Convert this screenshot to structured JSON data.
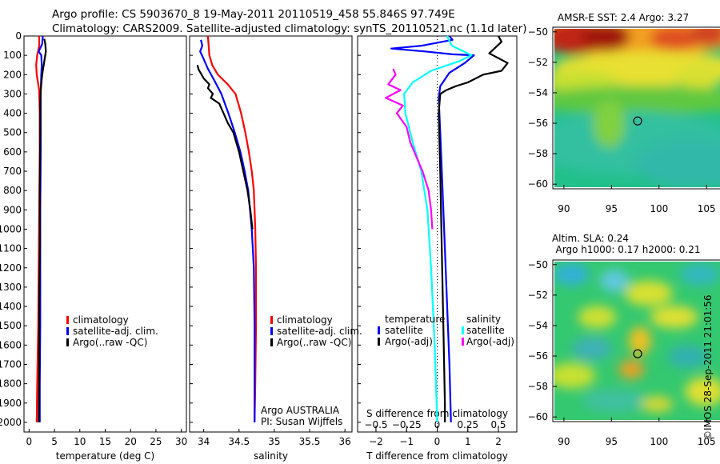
{
  "header": {
    "title_line1": "Argo profile: CS 5903670_8 19-May-2011 20110519_458 55.846S 97.749E",
    "title_line2": "Climatology: CARS2009. Satellite-adjusted climatology: synTS_20110521.nc (1.1d later)"
  },
  "colors": {
    "climatology": "#ff0000",
    "satellite": "#0000ff",
    "argo": "#000000",
    "satellite_salinity": "#00ffff",
    "argo_salinity": "#ff00ff"
  },
  "chart_data": [
    {
      "id": "temperature",
      "type": "line",
      "xlabel": "temperature (deg C)",
      "xlim": [
        -1,
        31
      ],
      "xticks": [
        0,
        5,
        10,
        15,
        20,
        25,
        30
      ],
      "xtick_labels": [
        "0",
        "5",
        "10",
        "15",
        "20",
        "25",
        "30"
      ],
      "ylim": [
        2050,
        0
      ],
      "yticks": [
        0,
        100,
        200,
        300,
        400,
        500,
        600,
        700,
        800,
        900,
        1000,
        1100,
        1200,
        1300,
        1400,
        1500,
        1600,
        1700,
        1800,
        1900,
        2000
      ],
      "ytick_labels": [
        "0",
        "100",
        "200",
        "300",
        "400",
        "500",
        "600",
        "700",
        "800",
        "900",
        "1000",
        "1100",
        "1200",
        "1300",
        "1400",
        "1500",
        "1600",
        "1700",
        "1800",
        "1900",
        "2000"
      ],
      "legend": {
        "placement": "lower-right",
        "entries": [
          {
            "label": "climatology",
            "color": "#ff0000"
          },
          {
            "label": "satellite-adj. clim.",
            "color": "#0000ff"
          },
          {
            "label": "Argo(..raw -QC)",
            "color": "#000000"
          }
        ]
      },
      "series": [
        {
          "name": "climatology",
          "color": "#ff0000",
          "points": [
            [
              2.0,
              0
            ],
            [
              2.0,
              50
            ],
            [
              1.6,
              100
            ],
            [
              1.4,
              150
            ],
            [
              1.5,
              200
            ],
            [
              2.0,
              280
            ],
            [
              2.1,
              400
            ],
            [
              2.1,
              600
            ],
            [
              2.0,
              900
            ],
            [
              1.9,
              1200
            ],
            [
              1.8,
              1500
            ],
            [
              1.6,
              1800
            ],
            [
              1.5,
              2000
            ]
          ]
        },
        {
          "name": "satellite-adj. clim.",
          "color": "#0000ff",
          "points": [
            [
              2.7,
              0
            ],
            [
              2.6,
              40
            ],
            [
              1.9,
              80
            ],
            [
              2.4,
              100
            ],
            [
              2.5,
              150
            ],
            [
              2.4,
              200
            ],
            [
              2.3,
              300
            ],
            [
              2.3,
              400
            ],
            [
              2.3,
              600
            ],
            [
              2.2,
              900
            ],
            [
              2.2,
              1200
            ],
            [
              2.2,
              1500
            ],
            [
              2.1,
              1800
            ],
            [
              2.1,
              2000
            ]
          ]
        },
        {
          "name": "Argo(..raw -QC)",
          "color": "#000000",
          "points": [
            [
              3.0,
              15
            ],
            [
              3.2,
              40
            ],
            [
              3.3,
              80
            ],
            [
              3.0,
              130
            ],
            [
              2.7,
              180
            ],
            [
              2.5,
              220
            ],
            [
              2.3,
              280
            ],
            [
              2.2,
              350
            ],
            [
              2.2,
              500
            ],
            [
              2.1,
              800
            ],
            [
              2.1,
              1100
            ],
            [
              2.0,
              1400
            ],
            [
              2.0,
              1700
            ],
            [
              1.9,
              2000
            ]
          ]
        }
      ]
    },
    {
      "id": "salinity",
      "type": "line",
      "xlabel": "salinity",
      "xlim": [
        33.8,
        36.1
      ],
      "xticks": [
        34,
        34.5,
        35,
        35.5,
        36
      ],
      "xtick_labels": [
        "34",
        "34.5",
        "35",
        "35.5",
        "36"
      ],
      "ylim": [
        2050,
        0
      ],
      "legend": {
        "placement": "lower-right",
        "entries": [
          {
            "label": "climatology",
            "color": "#ff0000"
          },
          {
            "label": "satellite-adj. clim.",
            "color": "#0000ff"
          },
          {
            "label": "Argo(..raw -QC)",
            "color": "#000000"
          }
        ]
      },
      "annotations": [
        "Argo AUSTRALIA",
        "PI: Susan Wijffels"
      ],
      "series": [
        {
          "name": "climatology",
          "color": "#ff0000",
          "points": [
            [
              34.06,
              0
            ],
            [
              34.08,
              100
            ],
            [
              34.12,
              150
            ],
            [
              34.2,
              200
            ],
            [
              34.34,
              250
            ],
            [
              34.45,
              300
            ],
            [
              34.53,
              400
            ],
            [
              34.59,
              500
            ],
            [
              34.64,
              600
            ],
            [
              34.68,
              700
            ],
            [
              34.71,
              800
            ],
            [
              34.73,
              1000
            ],
            [
              34.74,
              1200
            ],
            [
              34.74,
              1500
            ],
            [
              34.73,
              1800
            ],
            [
              34.72,
              2000
            ]
          ]
        },
        {
          "name": "satellite-adj. clim.",
          "color": "#0000ff",
          "points": [
            [
              33.96,
              20
            ],
            [
              33.98,
              50
            ],
            [
              33.95,
              80
            ],
            [
              34.0,
              120
            ],
            [
              34.06,
              170
            ],
            [
              34.15,
              230
            ],
            [
              34.25,
              300
            ],
            [
              34.35,
              400
            ],
            [
              34.44,
              500
            ],
            [
              34.52,
              600
            ],
            [
              34.58,
              700
            ],
            [
              34.63,
              800
            ],
            [
              34.68,
              1000
            ],
            [
              34.71,
              1200
            ],
            [
              34.72,
              1500
            ],
            [
              34.72,
              1800
            ],
            [
              34.72,
              2000
            ]
          ]
        },
        {
          "name": "Argo(..raw -QC)",
          "color": "#000000",
          "points": [
            [
              33.91,
              150
            ],
            [
              33.93,
              175
            ],
            [
              33.97,
              200
            ],
            [
              34.0,
              220
            ],
            [
              34.08,
              250
            ],
            [
              34.06,
              270
            ],
            [
              34.13,
              300
            ],
            [
              34.1,
              320
            ],
            [
              34.22,
              350
            ],
            [
              34.28,
              400
            ],
            [
              34.34,
              450
            ],
            [
              34.42,
              500
            ],
            [
              34.5,
              600
            ],
            [
              34.56,
              700
            ],
            [
              34.62,
              800
            ],
            [
              34.66,
              900
            ],
            [
              34.69,
              1000
            ]
          ]
        }
      ]
    },
    {
      "id": "difference",
      "type": "line",
      "xlabel": "T difference from climatology",
      "x2label": "S difference from climatology",
      "xlim": [
        -2.6,
        2.6
      ],
      "xticks": [
        -2,
        -1,
        0,
        1,
        2
      ],
      "xtick_labels": [
        "−2",
        "−1",
        "0",
        "1",
        "2"
      ],
      "x2ticks": [
        -0.5,
        -0.25,
        0,
        0.25,
        0.5
      ],
      "x2tick_labels": [
        "−0.5",
        "−0.25",
        "0",
        "0.25",
        "0.5"
      ],
      "ylim": [
        2050,
        0
      ],
      "legend": {
        "placement": "lower-center",
        "temperature_title": "temperature",
        "salinity_title": "salinity",
        "temperature_entries": [
          {
            "label": "satellite",
            "color": "#0000ff"
          },
          {
            "label": "Argo(-adj)",
            "color": "#000000"
          }
        ],
        "salinity_entries": [
          {
            "label": "satellite",
            "color": "#00ffff"
          },
          {
            "label": "Argo(-adj)",
            "color": "#ff00ff"
          }
        ]
      },
      "series": [
        {
          "name": "satellite",
          "quantity": "T",
          "color": "#0000ff",
          "points": [
            [
              0.4,
              0
            ],
            [
              0.5,
              20
            ],
            [
              -0.5,
              50
            ],
            [
              -1.5,
              65
            ],
            [
              -0.4,
              80
            ],
            [
              0.5,
              95
            ],
            [
              1.2,
              100
            ],
            [
              0.9,
              140
            ],
            [
              0.4,
              190
            ],
            [
              0.1,
              260
            ],
            [
              0.05,
              320
            ],
            [
              0.1,
              500
            ],
            [
              0.2,
              900
            ],
            [
              0.3,
              1300
            ],
            [
              0.4,
              1700
            ],
            [
              0.45,
              2000
            ]
          ]
        },
        {
          "name": "Argo(-adj)",
          "quantity": "T",
          "color": "#000000",
          "points": [
            [
              2.0,
              0
            ],
            [
              2.1,
              30
            ],
            [
              1.7,
              90
            ],
            [
              2.3,
              140
            ],
            [
              2.1,
              180
            ],
            [
              1.5,
              200
            ],
            [
              1.0,
              240
            ],
            [
              0.6,
              260
            ],
            [
              0.3,
              280
            ],
            [
              0.1,
              300
            ],
            [
              0.05,
              400
            ],
            [
              0.1,
              700
            ],
            [
              0.15,
              1100
            ],
            [
              0.2,
              1500
            ],
            [
              0.25,
              1900
            ],
            [
              0.25,
              2000
            ]
          ]
        },
        {
          "name": "satellite",
          "quantity": "S",
          "color": "#00ffff",
          "points": [
            [
              0.08,
              0
            ],
            [
              0.12,
              50
            ],
            [
              0.28,
              100
            ],
            [
              0.18,
              130
            ],
            [
              -0.05,
              180
            ],
            [
              -0.2,
              240
            ],
            [
              -0.27,
              300
            ],
            [
              -0.26,
              400
            ],
            [
              -0.2,
              550
            ],
            [
              -0.13,
              700
            ],
            [
              -0.08,
              900
            ],
            [
              -0.05,
              1200
            ],
            [
              -0.02,
              1600
            ],
            [
              0,
              2000
            ]
          ]
        },
        {
          "name": "Argo(-adj)",
          "quantity": "S",
          "color": "#ff00ff",
          "points": [
            [
              -0.36,
              170
            ],
            [
              -0.34,
              200
            ],
            [
              -0.4,
              250
            ],
            [
              -0.3,
              280
            ],
            [
              -0.42,
              320
            ],
            [
              -0.28,
              360
            ],
            [
              -0.33,
              400
            ],
            [
              -0.25,
              470
            ],
            [
              -0.22,
              550
            ],
            [
              -0.12,
              700
            ],
            [
              -0.07,
              800
            ],
            [
              -0.05,
              900
            ],
            [
              -0.04,
              1000
            ]
          ]
        }
      ]
    },
    {
      "id": "sst-map",
      "type": "heatmap",
      "title": "AMSR-E SST: 2.4 Argo: 3.27",
      "xlim": [
        89,
        107
      ],
      "ylim": [
        -60.2,
        -49.8
      ],
      "xticks": [
        90,
        95,
        100,
        105
      ],
      "yticks": [
        -50,
        -52,
        -54,
        -56,
        -58,
        -60
      ],
      "marker": {
        "lon": 97.75,
        "lat": -55.85
      }
    },
    {
      "id": "sla-map",
      "type": "heatmap",
      "title_line1": "Altim. SLA: 0.24",
      "title_line2": "Argo h1000: 0.17 h2000: 0.21",
      "xlim": [
        89,
        107
      ],
      "ylim": [
        -60.2,
        -49.8
      ],
      "xticks": [
        90,
        95,
        100,
        105
      ],
      "yticks": [
        -50,
        -52,
        -54,
        -56,
        -58,
        -60
      ],
      "marker": {
        "lon": 97.75,
        "lat": -55.85
      }
    }
  ],
  "credit": "©IMOS 28-Sep-2011 21:01:56"
}
